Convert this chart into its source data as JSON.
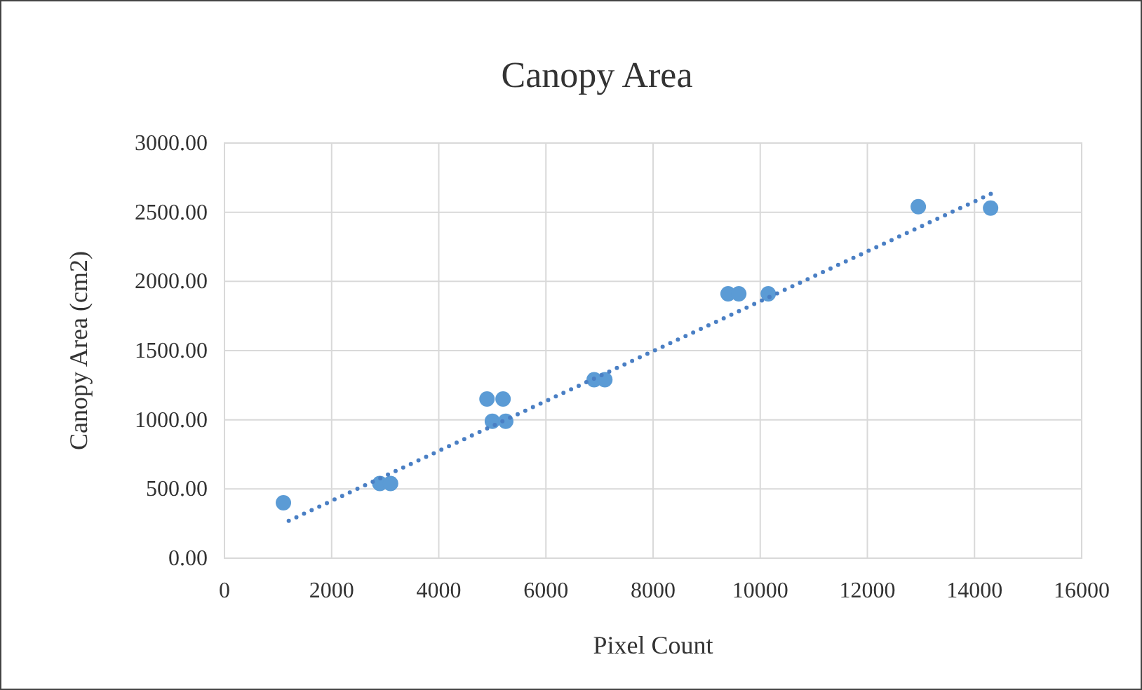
{
  "chart_data": {
    "type": "scatter",
    "title": "Canopy Area",
    "xlabel": "Pixel Count",
    "ylabel": "Canopy Area (cm2)",
    "xlim": [
      0,
      16000
    ],
    "xticks": [
      0,
      2000,
      4000,
      6000,
      8000,
      10000,
      12000,
      14000,
      16000
    ],
    "ylim": [
      0,
      3000
    ],
    "yticks": [
      {
        "value": 0,
        "label": "0.00"
      },
      {
        "value": 500,
        "label": "500.00"
      },
      {
        "value": 1000,
        "label": "1000.00"
      },
      {
        "value": 1500,
        "label": "1500.00"
      },
      {
        "value": 2000,
        "label": "2000.00"
      },
      {
        "value": 2500,
        "label": "2500.00"
      },
      {
        "value": 3000,
        "label": "3000.00"
      }
    ],
    "grid": true,
    "series": [
      {
        "color": "#5b9bd5",
        "marker": "circle",
        "x": [
          1100,
          2900,
          3100,
          4900,
          5200,
          5000,
          5250,
          6900,
          7100,
          9400,
          9600,
          10150,
          12950,
          14300
        ],
        "values": [
          400,
          540,
          540,
          1150,
          1150,
          990,
          990,
          1290,
          1290,
          1910,
          1910,
          1910,
          2540,
          2530
        ]
      },
      {
        "type": "line",
        "color": "#4a7fc4",
        "marker": "none",
        "line_style": "dotted",
        "x": [
          1200,
          14400
        ],
        "values": [
          270,
          2650
        ]
      }
    ]
  }
}
